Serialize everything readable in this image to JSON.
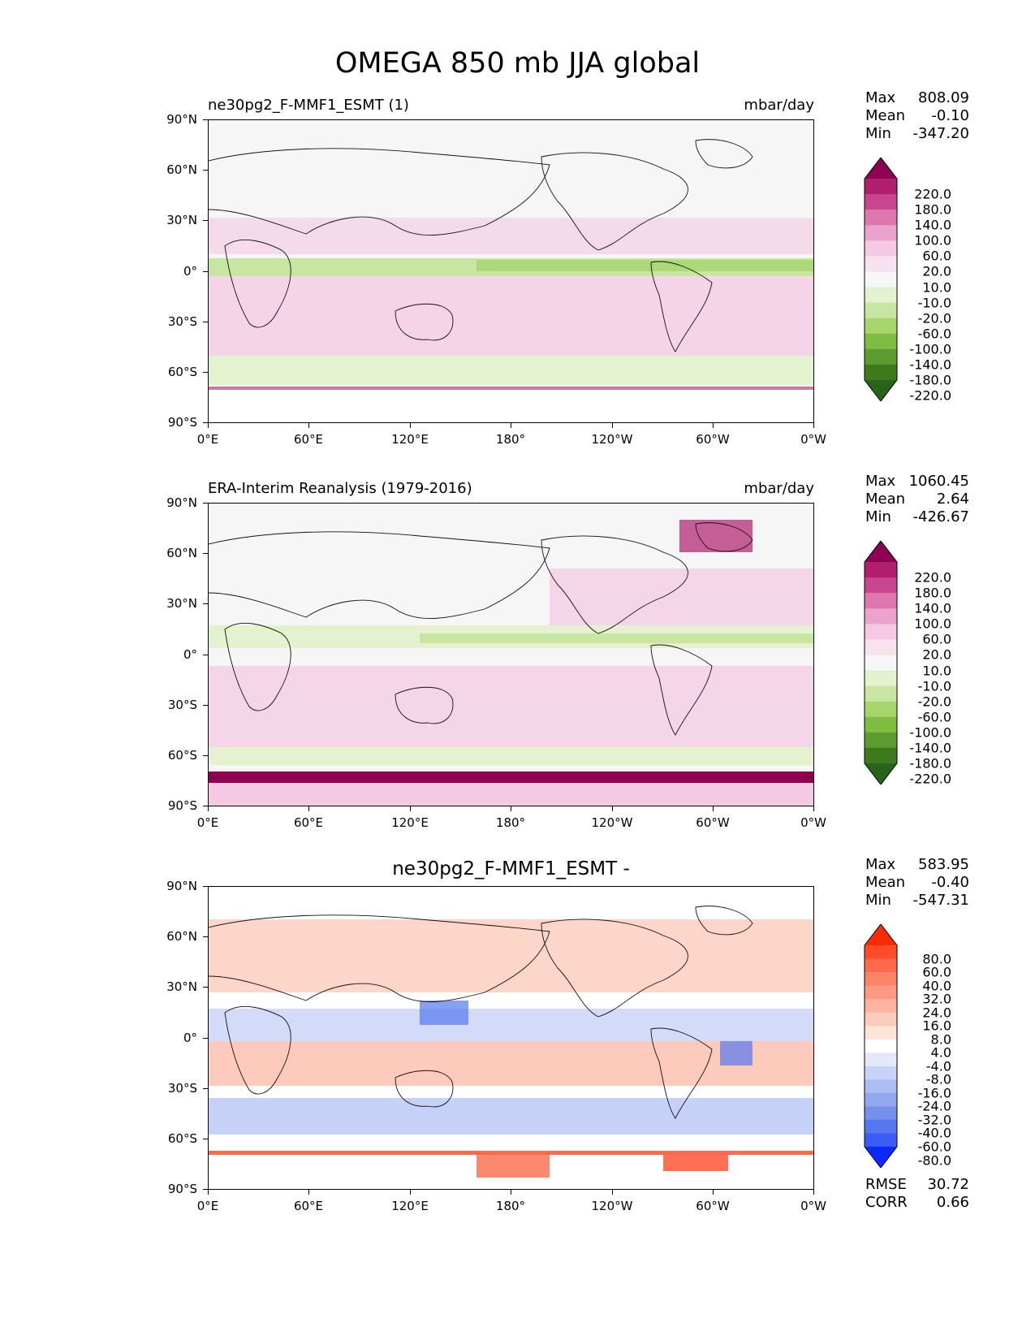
{
  "title": "OMEGA 850 mb JJA global",
  "x_ticks": [
    "0°E",
    "60°E",
    "120°E",
    "180°",
    "120°W",
    "60°W",
    "0°W"
  ],
  "y_ticks": [
    "90°N",
    "60°N",
    "30°N",
    "0°",
    "30°S",
    "60°S",
    "90°S"
  ],
  "panels": [
    {
      "title": "ne30pg2_F-MMF1_ESMT (1)",
      "units": "mbar/day",
      "stats": {
        "max_label": "Max",
        "max": "808.09",
        "mean_label": "Mean",
        "mean": "-0.10",
        "min_label": "Min",
        "min": "-347.20"
      },
      "colorbar": {
        "levels": [
          "220.0",
          "180.0",
          "140.0",
          "100.0",
          "60.0",
          "20.0",
          "10.0",
          "-10.0",
          "-20.0",
          "-60.0",
          "-100.0",
          "-140.0",
          "-180.0",
          "-220.0"
        ],
        "colors": [
          "#8e0152",
          "#b01e6e",
          "#c8468f",
          "#de77ae",
          "#eba3cd",
          "#f5c8e3",
          "#f9e2ef",
          "#f6f6f6",
          "#e4f2cf",
          "#c8e6a2",
          "#a6d56d",
          "#7fbc41",
          "#5c9b2e",
          "#3d7a1d",
          "#276419"
        ]
      }
    },
    {
      "title": "ERA-Interim Reanalysis (1979-2016)",
      "units": "mbar/day",
      "stats": {
        "max_label": "Max",
        "max": "1060.45",
        "mean_label": "Mean",
        "mean": "2.64",
        "min_label": "Min",
        "min": "-426.67"
      },
      "colorbar": {
        "levels": [
          "220.0",
          "180.0",
          "140.0",
          "100.0",
          "60.0",
          "20.0",
          "10.0",
          "-10.0",
          "-20.0",
          "-60.0",
          "-100.0",
          "-140.0",
          "-180.0",
          "-220.0"
        ],
        "colors": [
          "#8e0152",
          "#b01e6e",
          "#c8468f",
          "#de77ae",
          "#eba3cd",
          "#f5c8e3",
          "#f9e2ef",
          "#f6f6f6",
          "#e4f2cf",
          "#c8e6a2",
          "#a6d56d",
          "#7fbc41",
          "#5c9b2e",
          "#3d7a1d",
          "#276419"
        ]
      }
    },
    {
      "title": "ne30pg2_F-MMF1_ESMT -",
      "units": "",
      "stats": {
        "max_label": "Max",
        "max": "583.95",
        "mean_label": "Mean",
        "mean": "-0.40",
        "min_label": "Min",
        "min": "-547.31"
      },
      "colorbar": {
        "levels": [
          "80.0",
          "60.0",
          "40.0",
          "32.0",
          "24.0",
          "16.0",
          "8.0",
          "4.0",
          "-4.0",
          "-8.0",
          "-16.0",
          "-24.0",
          "-32.0",
          "-40.0",
          "-60.0",
          "-80.0"
        ],
        "colors": [
          "#ff2a00",
          "#fe4b2c",
          "#fb6a4a",
          "#fb8466",
          "#fc9b82",
          "#fcb49f",
          "#fdcbbd",
          "#fee3d8",
          "#ffffff",
          "#e3e8fb",
          "#c9d2f7",
          "#adbdf3",
          "#92a7ee",
          "#7590ea",
          "#5577ef",
          "#3b5cf5",
          "#0a2aff"
        ]
      },
      "metrics": {
        "rmse_label": "RMSE",
        "rmse": "30.72",
        "corr_label": "CORR",
        "corr": "0.66"
      }
    }
  ]
}
